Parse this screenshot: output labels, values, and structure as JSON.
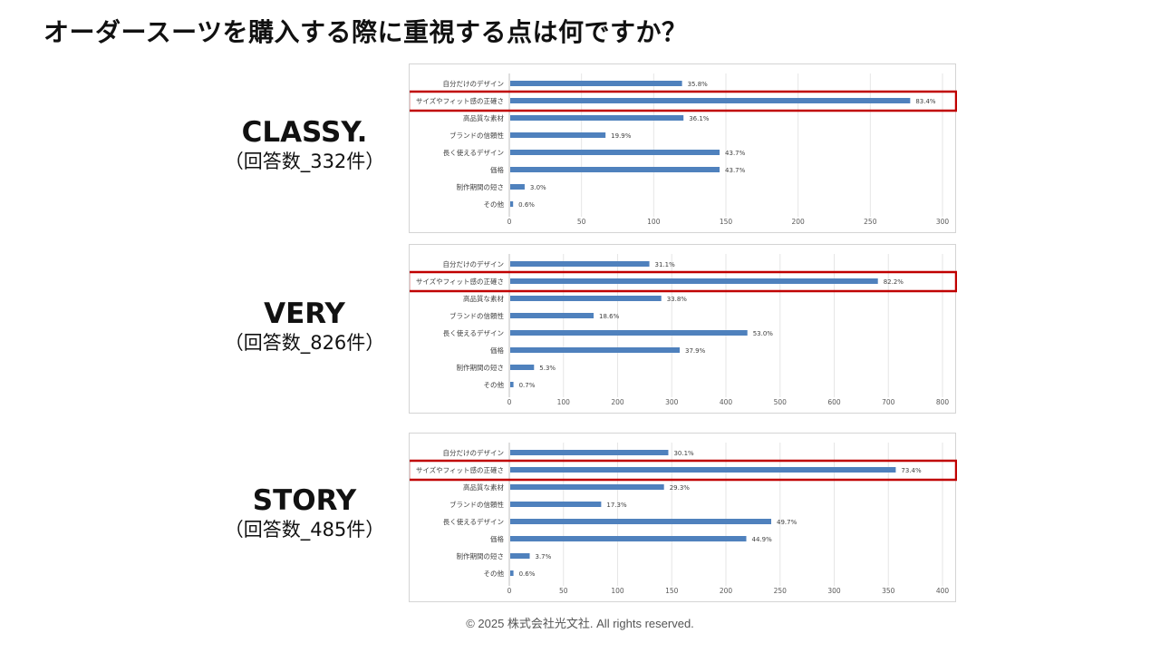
{
  "page": {
    "title": "オーダースーツを購入する際に重視する点は何ですか？",
    "copyright": "© 2025 株式会社光文社. All rights reserved."
  },
  "colors": {
    "bar": "#4f81bd",
    "highlight": "#c00000",
    "grid": "#e6e6e6"
  },
  "magazines": [
    {
      "name": "CLASSY.",
      "count": "（回答数_332件）"
    },
    {
      "name": "VERY",
      "count": "（回答数_826件）"
    },
    {
      "name": "STORY",
      "count": "（回答数_485件）"
    }
  ],
  "chart_data": [
    {
      "type": "bar",
      "orientation": "horizontal",
      "categories": [
        "自分だけのデザイン",
        "サイズやフィット感の正確さ",
        "高品質な素材",
        "ブランドの信頼性",
        "長く使えるデザイン",
        "価格",
        "制作期間の短さ",
        "その他"
      ],
      "values": [
        119,
        277,
        120,
        66,
        145,
        145,
        10,
        2
      ],
      "data_labels": [
        "35.8%",
        "83.4%",
        "36.1%",
        "19.9%",
        "43.7%",
        "43.7%",
        "3.0%",
        "0.6%"
      ],
      "xlim": [
        0,
        300
      ],
      "xticks": [
        "0",
        "50",
        "100",
        "150",
        "200",
        "250",
        "300"
      ],
      "highlighted_category": "サイズやフィット感の正確さ",
      "grid": true
    },
    {
      "type": "bar",
      "orientation": "horizontal",
      "categories": [
        "自分だけのデザイン",
        "サイズやフィット感の正確さ",
        "高品質な素材",
        "ブランドの信頼性",
        "長く使えるデザイン",
        "価格",
        "制作期間の短さ",
        "その他"
      ],
      "values": [
        257,
        679,
        279,
        154,
        438,
        313,
        44,
        6
      ],
      "data_labels": [
        "31.1%",
        "82.2%",
        "33.8%",
        "18.6%",
        "53.0%",
        "37.9%",
        "5.3%",
        "0.7%"
      ],
      "xlim": [
        0,
        800
      ],
      "xticks": [
        "0",
        "100",
        "200",
        "300",
        "400",
        "500",
        "600",
        "700",
        "800"
      ],
      "highlighted_category": "サイズやフィット感の正確さ",
      "grid": true
    },
    {
      "type": "bar",
      "orientation": "horizontal",
      "categories": [
        "自分だけのデザイン",
        "サイズやフィット感の正確さ",
        "高品質な素材",
        "ブランドの信頼性",
        "長く使えるデザイン",
        "価格",
        "制作期間の短さ",
        "その他"
      ],
      "values": [
        146,
        356,
        142,
        84,
        241,
        218,
        18,
        3
      ],
      "data_labels": [
        "30.1%",
        "73.4%",
        "29.3%",
        "17.3%",
        "49.7%",
        "44.9%",
        "3.7%",
        "0.6%"
      ],
      "xlim": [
        0,
        400
      ],
      "xticks": [
        "0",
        "50",
        "100",
        "150",
        "200",
        "250",
        "300",
        "350",
        "400"
      ],
      "highlighted_category": "サイズやフィット感の正確さ",
      "grid": true
    }
  ]
}
